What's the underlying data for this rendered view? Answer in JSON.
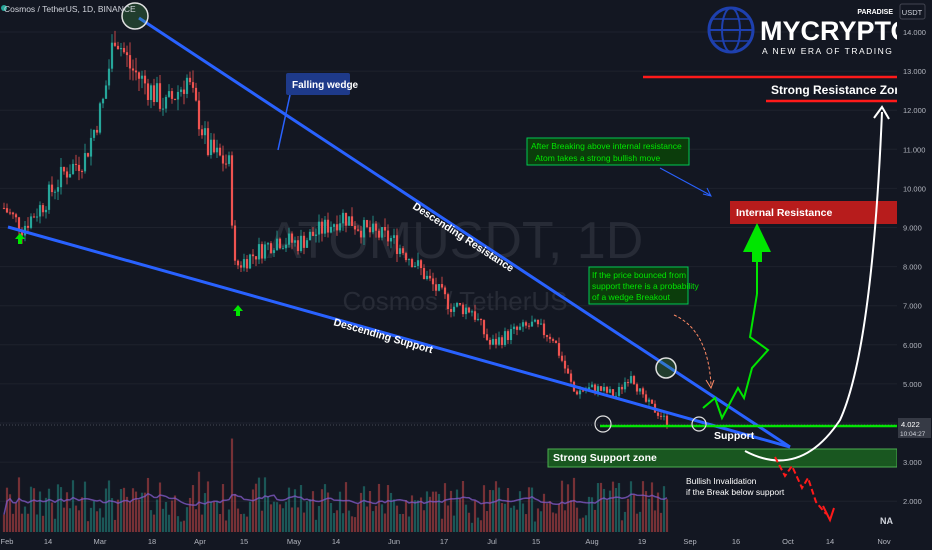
{
  "header": {
    "symbol": "Cosmos / TetherUS, 1D, BINANCE",
    "currency": "USDT"
  },
  "watermark": {
    "ticker": "ATOMUSDT, 1D",
    "name": "Cosmos / TetherUS"
  },
  "brand": {
    "name": "MYCRYPTO",
    "badge": "PARADISE",
    "tagline": "A NEW ERA OF TRADING"
  },
  "colors": {
    "background": "#131722",
    "bull": "#26a69a",
    "bear": "#ef5350",
    "trendline": "#2962ff",
    "support_green": "#00e600",
    "resistance_red": "#ff1a1a"
  },
  "price_axis": {
    "ticks": [
      "14.000",
      "13.000",
      "12.000",
      "11.000",
      "10.000",
      "9.000",
      "8.000",
      "7.000",
      "6.000",
      "5.000",
      "4.000",
      "3.000",
      "2.000"
    ],
    "last_price": "4.022",
    "countdown": "10:04:27"
  },
  "time_axis": {
    "ticks": [
      "Feb",
      "14",
      "Mar",
      "18",
      "Apr",
      "15",
      "May",
      "14",
      "Jun",
      "17",
      "Jul",
      "15",
      "Aug",
      "19",
      "Sep",
      "16",
      "Oct",
      "14",
      "Nov"
    ]
  },
  "annotations": {
    "falling_wedge": "Falling wedge",
    "descending_resistance": "Descending Resistance",
    "descending_support": "Descending Support",
    "after_breaking": [
      "After Breaking above internal resistance",
      "Atom takes a strong bullish move"
    ],
    "bounce_note": [
      "If the price bounced from",
      "support there is a probability",
      "of a wedge Breakout"
    ],
    "internal_resistance": "Internal Resistance",
    "strong_resistance_zone": "Strong Resistance Zone",
    "support": "Support",
    "strong_support_zone": "Strong Support zone",
    "bullish_invalidation": [
      "Bullish Invalidation",
      "if the Break below support"
    ],
    "na": "NA"
  },
  "chart_data": {
    "type": "candlestick",
    "title": "Cosmos / TetherUS, 1D, BINANCE",
    "y_unit": "USDT",
    "ylim": [
      1.2,
      14.7
    ],
    "x_range": [
      "2024-01-28",
      "2024-11-05"
    ],
    "close_series": [
      {
        "date": "2024-01-28",
        "close": 9.5
      },
      {
        "date": "2024-02-03",
        "close": 9.0
      },
      {
        "date": "2024-02-10",
        "close": 9.6
      },
      {
        "date": "2024-02-17",
        "close": 10.4
      },
      {
        "date": "2024-02-24",
        "close": 10.8
      },
      {
        "date": "2024-03-01",
        "close": 12.2
      },
      {
        "date": "2024-03-05",
        "close": 14.0
      },
      {
        "date": "2024-03-10",
        "close": 13.1
      },
      {
        "date": "2024-03-16",
        "close": 12.6
      },
      {
        "date": "2024-03-22",
        "close": 12.1
      },
      {
        "date": "2024-03-29",
        "close": 12.8
      },
      {
        "date": "2024-04-05",
        "close": 11.0
      },
      {
        "date": "2024-04-12",
        "close": 10.6
      },
      {
        "date": "2024-04-14",
        "close": 8.0
      },
      {
        "date": "2024-04-20",
        "close": 8.3
      },
      {
        "date": "2024-04-28",
        "close": 8.7
      },
      {
        "date": "2024-05-05",
        "close": 8.6
      },
      {
        "date": "2024-05-12",
        "close": 8.9
      },
      {
        "date": "2024-05-20",
        "close": 9.3
      },
      {
        "date": "2024-05-28",
        "close": 8.9
      },
      {
        "date": "2024-06-05",
        "close": 8.7
      },
      {
        "date": "2024-06-12",
        "close": 8.2
      },
      {
        "date": "2024-06-18",
        "close": 7.6
      },
      {
        "date": "2024-06-25",
        "close": 7.0
      },
      {
        "date": "2024-07-02",
        "close": 6.9
      },
      {
        "date": "2024-07-08",
        "close": 6.0
      },
      {
        "date": "2024-07-15",
        "close": 6.3
      },
      {
        "date": "2024-07-22",
        "close": 6.5
      },
      {
        "date": "2024-07-29",
        "close": 6.2
      },
      {
        "date": "2024-08-05",
        "close": 4.8
      },
      {
        "date": "2024-08-12",
        "close": 4.9
      },
      {
        "date": "2024-08-19",
        "close": 4.7
      },
      {
        "date": "2024-08-24",
        "close": 5.3
      },
      {
        "date": "2024-08-28",
        "close": 4.6
      },
      {
        "date": "2024-09-03",
        "close": 4.2
      },
      {
        "date": "2024-09-05",
        "close": 4.02
      }
    ],
    "descending_resistance": [
      {
        "date": "2024-03-05",
        "price": 14.0
      },
      {
        "date": "2024-09-30",
        "price": 3.6
      }
    ],
    "descending_support": [
      {
        "date": "2024-01-28",
        "price": 9.0
      },
      {
        "date": "2024-09-30",
        "price": 3.4
      }
    ],
    "support_level": 4.0,
    "strong_support_zone": [
      3.0,
      3.4
    ],
    "internal_resistance_zone": [
      9.1,
      9.6
    ],
    "strong_resistance_level": [
      12.3,
      12.8
    ],
    "volume_panel": true,
    "legend": "top-left"
  }
}
